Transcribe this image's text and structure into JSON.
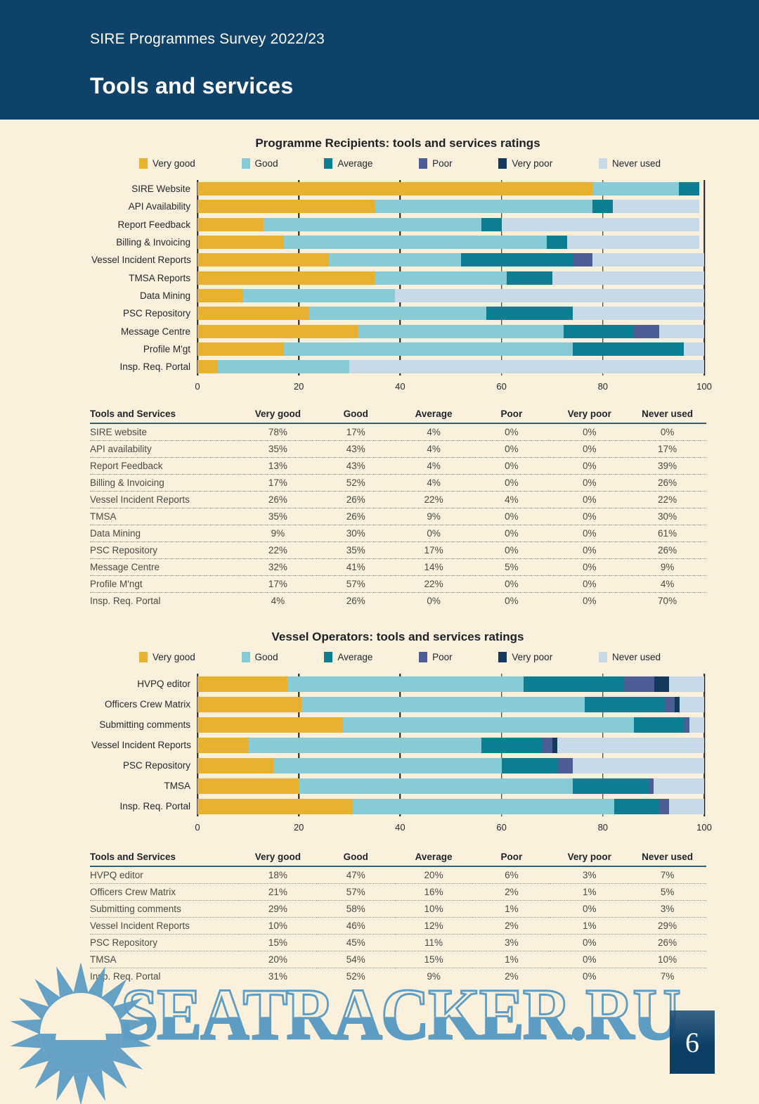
{
  "header": {
    "survey_title": "SIRE Programmes Survey 2022/23",
    "page_title": "Tools and services"
  },
  "legend": {
    "items": [
      {
        "label": "Very good",
        "color": "#E8B230"
      },
      {
        "label": "Good",
        "color": "#87CBD7"
      },
      {
        "label": "Average",
        "color": "#0B7E92"
      },
      {
        "label": "Poor",
        "color": "#4D5E96"
      },
      {
        "label": "Very poor",
        "color": "#133A5E"
      },
      {
        "label": "Never used",
        "color": "#C8DAE8"
      }
    ]
  },
  "chart_data": [
    {
      "type": "bar",
      "stacked": true,
      "orientation": "horizontal",
      "title": "Programme Recipients: tools and services ratings",
      "categories": [
        "SIRE Website",
        "API Availability",
        "Report Feedback",
        "Billing & Invoicing",
        "Vessel Incident Reports",
        "TMSA Reports",
        "Data Mining",
        "PSC Repository",
        "Message Centre",
        "Profile M'gt",
        "Insp. Req. Portal"
      ],
      "series": [
        {
          "name": "Very good",
          "color": "#E8B230",
          "values": [
            78,
            35,
            13,
            17,
            26,
            35,
            9,
            22,
            32,
            17,
            4
          ]
        },
        {
          "name": "Good",
          "color": "#87CBD7",
          "values": [
            17,
            43,
            43,
            52,
            26,
            26,
            30,
            35,
            41,
            57,
            26
          ]
        },
        {
          "name": "Average",
          "color": "#0B7E92",
          "values": [
            4,
            4,
            4,
            4,
            22,
            9,
            0,
            17,
            14,
            22,
            0
          ]
        },
        {
          "name": "Poor",
          "color": "#4D5E96",
          "values": [
            0,
            0,
            0,
            0,
            4,
            0,
            0,
            0,
            5,
            0,
            0
          ]
        },
        {
          "name": "Very poor",
          "color": "#133A5E",
          "values": [
            0,
            0,
            0,
            0,
            0,
            0,
            0,
            0,
            0,
            0,
            0
          ]
        },
        {
          "name": "Never used",
          "color": "#C8DAE8",
          "values": [
            0,
            17,
            39,
            26,
            22,
            30,
            61,
            26,
            9,
            4,
            70
          ]
        }
      ],
      "xlim": [
        0,
        100
      ],
      "xticks": [
        0,
        20,
        40,
        60,
        80,
        100
      ],
      "legend_position": "top",
      "grid": "vertical"
    },
    {
      "type": "bar",
      "stacked": true,
      "orientation": "horizontal",
      "title": "Vessel Operators: tools and services ratings",
      "categories": [
        "HVPQ editor",
        "Officers Crew Matrix",
        "Submitting comments",
        "Vessel Incident Reports",
        "PSC Repository",
        "TMSA",
        "Insp. Req. Portal"
      ],
      "series": [
        {
          "name": "Very good",
          "color": "#E8B230",
          "values": [
            18,
            21,
            29,
            10,
            15,
            20,
            31
          ]
        },
        {
          "name": "Good",
          "color": "#87CBD7",
          "values": [
            47,
            57,
            58,
            46,
            45,
            54,
            52
          ]
        },
        {
          "name": "Average",
          "color": "#0B7E92",
          "values": [
            20,
            16,
            10,
            12,
            11,
            15,
            9
          ]
        },
        {
          "name": "Poor",
          "color": "#4D5E96",
          "values": [
            6,
            2,
            1,
            2,
            3,
            1,
            2
          ]
        },
        {
          "name": "Very poor",
          "color": "#133A5E",
          "values": [
            3,
            1,
            0,
            1,
            0,
            0,
            0
          ]
        },
        {
          "name": "Never used",
          "color": "#C8DAE8",
          "values": [
            7,
            5,
            3,
            29,
            26,
            10,
            7
          ]
        }
      ],
      "xlim": [
        0,
        100
      ],
      "xticks": [
        0,
        20,
        40,
        60,
        80,
        100
      ],
      "legend_position": "top",
      "grid": "vertical"
    }
  ],
  "tables": [
    {
      "header": [
        "Tools and Services",
        "Very good",
        "Good",
        "Average",
        "Poor",
        "Very poor",
        "Never used"
      ],
      "rows": [
        [
          "SIRE website",
          "78%",
          "17%",
          "4%",
          "0%",
          "0%",
          "0%"
        ],
        [
          "API availability",
          "35%",
          "43%",
          "4%",
          "0%",
          "0%",
          "17%"
        ],
        [
          "Report Feedback",
          "13%",
          "43%",
          "4%",
          "0%",
          "0%",
          "39%"
        ],
        [
          "Billing & Invoicing",
          "17%",
          "52%",
          "4%",
          "0%",
          "0%",
          "26%"
        ],
        [
          "Vessel Incident Reports",
          "26%",
          "26%",
          "22%",
          "4%",
          "0%",
          "22%"
        ],
        [
          "TMSA",
          "35%",
          "26%",
          "9%",
          "0%",
          "0%",
          "30%"
        ],
        [
          "Data Mining",
          "9%",
          "30%",
          "0%",
          "0%",
          "0%",
          "61%"
        ],
        [
          "PSC Repository",
          "22%",
          "35%",
          "17%",
          "0%",
          "0%",
          "26%"
        ],
        [
          "Message Centre",
          "32%",
          "41%",
          "14%",
          "5%",
          "0%",
          "9%"
        ],
        [
          "Profile M'ngt",
          "17%",
          "57%",
          "22%",
          "0%",
          "0%",
          "4%"
        ],
        [
          "Insp. Req. Portal",
          "4%",
          "26%",
          "0%",
          "0%",
          "0%",
          "70%"
        ]
      ]
    },
    {
      "header": [
        "Tools and Services",
        "Very good",
        "Good",
        "Average",
        "Poor",
        "Very poor",
        "Never used"
      ],
      "rows": [
        [
          "HVPQ editor",
          "18%",
          "47%",
          "20%",
          "6%",
          "3%",
          "7%"
        ],
        [
          "Officers Crew Matrix",
          "21%",
          "57%",
          "16%",
          "2%",
          "1%",
          "5%"
        ],
        [
          "Submitting comments",
          "29%",
          "58%",
          "10%",
          "1%",
          "0%",
          "3%"
        ],
        [
          "Vessel Incident Reports",
          "10%",
          "46%",
          "12%",
          "2%",
          "1%",
          "29%"
        ],
        [
          "PSC Repository",
          "15%",
          "45%",
          "11%",
          "3%",
          "0%",
          "26%"
        ],
        [
          "TMSA",
          "20%",
          "54%",
          "15%",
          "1%",
          "0%",
          "10%"
        ],
        [
          "Insp. Req. Portal",
          "31%",
          "52%",
          "9%",
          "2%",
          "0%",
          "7%"
        ]
      ]
    }
  ],
  "footer": {
    "watermark_text": "SEATRACKER.RU",
    "page_number": "6",
    "watermark_color": "#5E9DC3"
  }
}
